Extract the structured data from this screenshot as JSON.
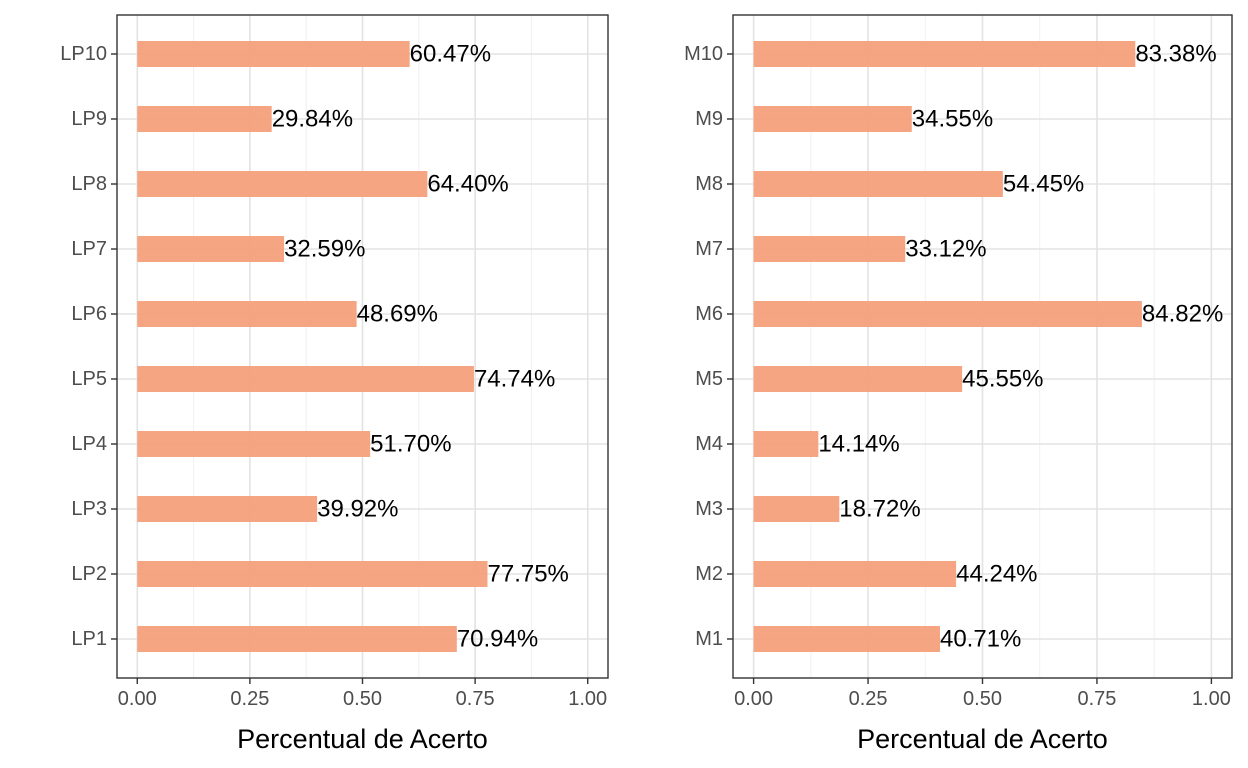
{
  "chart_data": [
    {
      "type": "bar",
      "orientation": "horizontal",
      "xlabel": "Percentual de Acerto",
      "ylabel": "",
      "xlim": [
        0,
        1
      ],
      "x_ticks": [
        "0.00",
        "0.25",
        "0.50",
        "0.75",
        "1.00"
      ],
      "x_tick_values": [
        0,
        0.25,
        0.5,
        0.75,
        1.0
      ],
      "grid": true,
      "bar_color": "#F4A07A",
      "categories": [
        "LP1",
        "LP2",
        "LP3",
        "LP4",
        "LP5",
        "LP6",
        "LP7",
        "LP8",
        "LP9",
        "LP10"
      ],
      "values": [
        0.7094,
        0.7775,
        0.3992,
        0.517,
        0.7474,
        0.4869,
        0.3259,
        0.644,
        0.2984,
        0.6047
      ],
      "labels": [
        "70.94%",
        "77.75%",
        "39.92%",
        "51.70%",
        "74.74%",
        "48.69%",
        "32.59%",
        "64.40%",
        "29.84%",
        "60.47%"
      ]
    },
    {
      "type": "bar",
      "orientation": "horizontal",
      "xlabel": "Percentual de Acerto",
      "ylabel": "",
      "xlim": [
        0,
        1
      ],
      "x_ticks": [
        "0.00",
        "0.25",
        "0.50",
        "0.75",
        "1.00"
      ],
      "x_tick_values": [
        0,
        0.25,
        0.5,
        0.75,
        1.0
      ],
      "grid": true,
      "bar_color": "#F4A07A",
      "categories": [
        "M1",
        "M2",
        "M3",
        "M4",
        "M5",
        "M6",
        "M7",
        "M8",
        "M9",
        "M10"
      ],
      "values": [
        0.4071,
        0.4424,
        0.1872,
        0.1414,
        0.4555,
        0.8482,
        0.3312,
        0.5445,
        0.3455,
        0.8338
      ],
      "labels": [
        "40.71%",
        "44.24%",
        "18.72%",
        "14.14%",
        "45.55%",
        "84.82%",
        "33.12%",
        "54.45%",
        "34.55%",
        "83.38%"
      ]
    }
  ]
}
